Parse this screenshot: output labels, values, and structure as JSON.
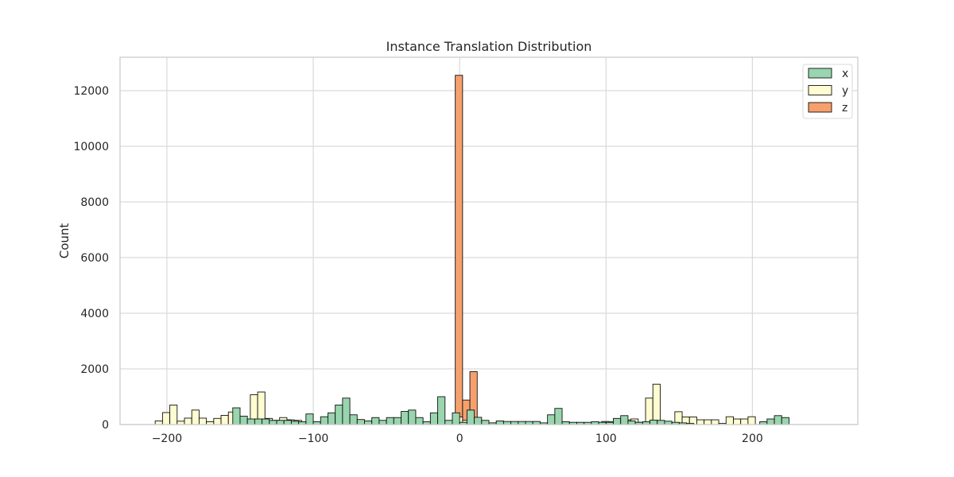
{
  "chart_data": {
    "type": "bar",
    "title": "Instance Translation Distribution",
    "xlabel": "",
    "ylabel": "Count",
    "xlim": [
      -232,
      272
    ],
    "ylim": [
      0,
      13200
    ],
    "bin_width": 5,
    "x_ticks": [
      -200,
      -100,
      0,
      100,
      200
    ],
    "x_tick_labels": [
      "−200",
      "−100",
      "0",
      "100",
      "200"
    ],
    "y_ticks": [
      0,
      2000,
      4000,
      6000,
      8000,
      10000,
      12000
    ],
    "y_tick_labels": [
      "0",
      "2000",
      "4000",
      "6000",
      "8000",
      "10000",
      "12000"
    ],
    "grid": true,
    "legend_position": "top-right",
    "draw_order": [
      "z",
      "y",
      "x"
    ],
    "series": [
      {
        "name": "x",
        "color": "#99d5ae",
        "bins": [
          [
            -155,
            600
          ],
          [
            -150,
            300
          ],
          [
            -145,
            200
          ],
          [
            -140,
            200
          ],
          [
            -135,
            200
          ],
          [
            -130,
            150
          ],
          [
            -125,
            150
          ],
          [
            -120,
            150
          ],
          [
            -115,
            120
          ],
          [
            -110,
            100
          ],
          [
            -105,
            380
          ],
          [
            -100,
            100
          ],
          [
            -95,
            280
          ],
          [
            -90,
            420
          ],
          [
            -85,
            700
          ],
          [
            -80,
            950
          ],
          [
            -75,
            350
          ],
          [
            -70,
            180
          ],
          [
            -65,
            130
          ],
          [
            -60,
            250
          ],
          [
            -55,
            150
          ],
          [
            -50,
            250
          ],
          [
            -45,
            250
          ],
          [
            -40,
            470
          ],
          [
            -35,
            520
          ],
          [
            -30,
            250
          ],
          [
            -25,
            100
          ],
          [
            -20,
            420
          ],
          [
            -15,
            1000
          ],
          [
            -10,
            150
          ],
          [
            -5,
            420
          ],
          [
            0,
            80
          ],
          [
            5,
            520
          ],
          [
            10,
            260
          ],
          [
            15,
            150
          ],
          [
            20,
            60
          ],
          [
            25,
            130
          ],
          [
            30,
            110
          ],
          [
            35,
            110
          ],
          [
            40,
            110
          ],
          [
            45,
            110
          ],
          [
            50,
            110
          ],
          [
            55,
            60
          ],
          [
            60,
            350
          ],
          [
            65,
            580
          ],
          [
            70,
            100
          ],
          [
            75,
            80
          ],
          [
            80,
            80
          ],
          [
            85,
            80
          ],
          [
            90,
            100
          ],
          [
            95,
            80
          ],
          [
            100,
            80
          ],
          [
            105,
            220
          ],
          [
            110,
            320
          ],
          [
            115,
            130
          ],
          [
            120,
            80
          ],
          [
            125,
            100
          ],
          [
            130,
            160
          ],
          [
            135,
            150
          ],
          [
            140,
            120
          ],
          [
            145,
            80
          ],
          [
            150,
            60
          ],
          [
            155,
            40
          ],
          [
            205,
            100
          ],
          [
            210,
            200
          ],
          [
            215,
            320
          ],
          [
            220,
            250
          ]
        ]
      },
      {
        "name": "y",
        "color": "#fefcd0",
        "bins": [
          [
            -208,
            130
          ],
          [
            -203,
            430
          ],
          [
            -198,
            700
          ],
          [
            -193,
            120
          ],
          [
            -188,
            230
          ],
          [
            -183,
            520
          ],
          [
            -178,
            230
          ],
          [
            -173,
            100
          ],
          [
            -168,
            220
          ],
          [
            -163,
            330
          ],
          [
            -158,
            450
          ],
          [
            -143,
            1070
          ],
          [
            -138,
            1170
          ],
          [
            -133,
            220
          ],
          [
            -128,
            150
          ],
          [
            -123,
            250
          ],
          [
            -118,
            170
          ],
          [
            -113,
            150
          ],
          [
            -103,
            80
          ],
          [
            -3,
            270
          ],
          [
            2,
            150
          ],
          [
            22,
            60
          ],
          [
            42,
            30
          ],
          [
            97,
            110
          ],
          [
            102,
            100
          ],
          [
            107,
            90
          ],
          [
            112,
            170
          ],
          [
            117,
            200
          ],
          [
            122,
            80
          ],
          [
            127,
            950
          ],
          [
            132,
            1450
          ],
          [
            147,
            460
          ],
          [
            152,
            270
          ],
          [
            157,
            270
          ],
          [
            162,
            170
          ],
          [
            167,
            170
          ],
          [
            172,
            170
          ],
          [
            177,
            40
          ],
          [
            182,
            280
          ],
          [
            187,
            200
          ],
          [
            192,
            200
          ],
          [
            197,
            280
          ]
        ]
      },
      {
        "name": "z",
        "color": "#f6a06c",
        "bins": [
          [
            -3,
            12550
          ],
          [
            2,
            880
          ],
          [
            7,
            1900
          ]
        ]
      }
    ]
  }
}
